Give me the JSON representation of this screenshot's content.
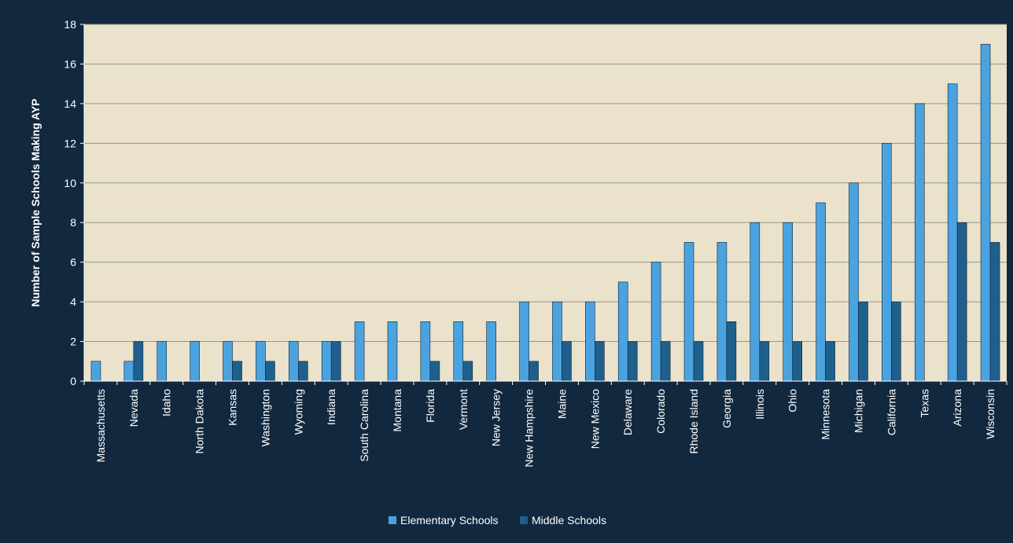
{
  "chart_data": {
    "type": "bar",
    "ylabel": "Number of Sample Schools Making AYP",
    "xlabel": "",
    "ylim": [
      0,
      18
    ],
    "yticks": [
      0,
      2,
      4,
      6,
      8,
      10,
      12,
      14,
      16,
      18
    ],
    "grid": true,
    "legend_position": "bottom",
    "categories": [
      "Massachusetts",
      "Nevada",
      "Idaho",
      "North Dakota",
      "Kansas",
      "Washington",
      "Wyoming",
      "Indiana",
      "South Carolina",
      "Montana",
      "Florida",
      "Vermont",
      "New Jersey",
      "New Hampshire",
      "Maine",
      "New Mexico",
      "Delaware",
      "Colorado",
      "Rhode Island",
      "Georgia",
      "Illinois",
      "Ohio",
      "Minnesota",
      "Michigan",
      "California",
      "Texas",
      "Arizona",
      "Wisconsin"
    ],
    "series": [
      {
        "name": "Elementary Schools",
        "color": "#4aa3df",
        "values": [
          1,
          1,
          2,
          2,
          2,
          2,
          2,
          2,
          3,
          3,
          3,
          3,
          3,
          4,
          4,
          4,
          5,
          6,
          7,
          7,
          8,
          8,
          9,
          10,
          12,
          14,
          15,
          17
        ]
      },
      {
        "name": "Middle Schools",
        "color": "#1f5f8b",
        "values": [
          0,
          2,
          0,
          0,
          1,
          1,
          1,
          2,
          0,
          0,
          1,
          1,
          0,
          1,
          2,
          2,
          2,
          2,
          2,
          3,
          2,
          2,
          2,
          4,
          4,
          0,
          8,
          7
        ]
      }
    ]
  },
  "colors": {
    "background": "#12283f",
    "plot_area": "#ebe2cc",
    "gridline": "#9a9486",
    "text": "#ffffff"
  }
}
